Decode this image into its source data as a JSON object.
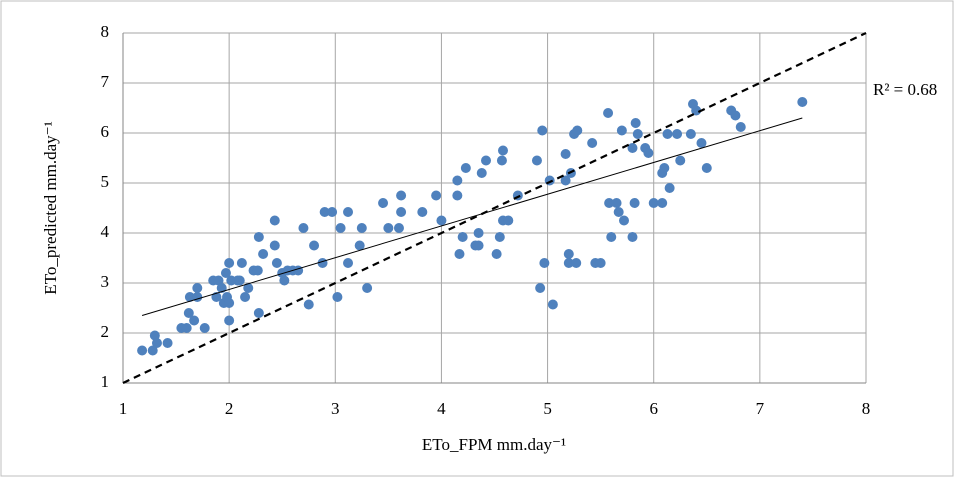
{
  "chart_data": {
    "type": "scatter",
    "x_label": "ETo_FPM mm.day⁻¹",
    "y_label": "ETo_predicted mm.day⁻¹",
    "annotation": "R² = 0.68",
    "color": "#4f81bd",
    "grid": true,
    "xlim": [
      1,
      8
    ],
    "xticks": [
      1,
      2,
      3,
      4,
      5,
      6,
      7,
      8
    ],
    "ylim": [
      1,
      8
    ],
    "yticks": [
      1,
      2,
      3,
      4,
      5,
      6,
      7,
      8
    ],
    "x": [
      1.18,
      1.28,
      1.3,
      1.32,
      1.42,
      1.55,
      1.6,
      1.62,
      1.63,
      1.67,
      1.7,
      1.7,
      1.77,
      1.85,
      1.88,
      1.9,
      1.93,
      1.95,
      1.97,
      1.98,
      2.0,
      2.0,
      2.0,
      2.02,
      2.08,
      2.1,
      2.12,
      2.15,
      2.18,
      2.23,
      2.27,
      2.28,
      2.28,
      2.32,
      2.43,
      2.43,
      2.45,
      2.5,
      2.52,
      2.55,
      2.6,
      2.65,
      2.7,
      2.75,
      2.8,
      2.88,
      2.9,
      2.97,
      3.02,
      3.05,
      3.12,
      3.12,
      3.23,
      3.25,
      3.3,
      3.45,
      3.5,
      3.6,
      3.62,
      3.62,
      3.82,
      3.95,
      4.0,
      4.15,
      4.15,
      4.17,
      4.2,
      4.23,
      4.32,
      4.35,
      4.35,
      4.38,
      4.42,
      4.52,
      4.55,
      4.57,
      4.58,
      4.58,
      4.63,
      4.72,
      4.9,
      4.93,
      4.95,
      4.97,
      5.02,
      5.05,
      5.17,
      5.17,
      5.2,
      5.2,
      5.22,
      5.25,
      5.27,
      5.28,
      5.42,
      5.45,
      5.5,
      5.57,
      5.58,
      5.6,
      5.65,
      5.67,
      5.7,
      5.72,
      5.8,
      5.8,
      5.82,
      5.83,
      5.85,
      5.92,
      5.95,
      6.0,
      6.08,
      6.08,
      6.1,
      6.13,
      6.15,
      6.22,
      6.25,
      6.35,
      6.37,
      6.4,
      6.45,
      6.5,
      6.73,
      6.77,
      6.82,
      7.4
    ],
    "values": [
      1.65,
      1.65,
      1.95,
      1.8,
      1.8,
      2.1,
      2.1,
      2.4,
      2.72,
      2.25,
      2.72,
      2.9,
      2.1,
      3.05,
      2.72,
      3.05,
      2.9,
      2.6,
      3.2,
      2.72,
      2.6,
      3.4,
      2.25,
      3.05,
      3.05,
      3.05,
      3.4,
      2.72,
      2.9,
      3.25,
      3.25,
      3.92,
      2.4,
      3.58,
      4.25,
      3.75,
      3.4,
      3.2,
      3.05,
      3.25,
      3.25,
      3.25,
      4.1,
      2.57,
      3.75,
      3.4,
      4.42,
      4.42,
      2.72,
      4.1,
      4.42,
      3.4,
      3.75,
      4.1,
      2.9,
      4.6,
      4.1,
      4.1,
      4.42,
      4.75,
      4.42,
      4.75,
      4.25,
      5.05,
      4.75,
      3.58,
      3.92,
      5.3,
      3.75,
      3.75,
      4.0,
      5.2,
      5.45,
      3.58,
      3.92,
      5.45,
      5.65,
      4.25,
      4.25,
      4.75,
      5.45,
      2.9,
      6.05,
      3.4,
      5.05,
      2.57,
      5.05,
      5.58,
      3.58,
      3.4,
      5.2,
      5.98,
      3.4,
      6.05,
      5.8,
      3.4,
      3.4,
      6.4,
      4.6,
      3.92,
      4.6,
      4.42,
      6.05,
      4.25,
      5.7,
      3.92,
      4.6,
      6.2,
      5.98,
      5.7,
      5.6,
      4.6,
      5.2,
      4.6,
      5.3,
      5.98,
      4.9,
      5.98,
      5.45,
      5.98,
      6.58,
      6.45,
      5.8,
      5.3,
      6.45,
      6.35,
      6.12,
      6.62
    ],
    "trendline": {
      "x": [
        1.18,
        7.4
      ],
      "values": [
        2.35,
        6.3
      ]
    },
    "reference_line": {
      "x": [
        1,
        8
      ],
      "values": [
        1,
        8
      ]
    }
  }
}
